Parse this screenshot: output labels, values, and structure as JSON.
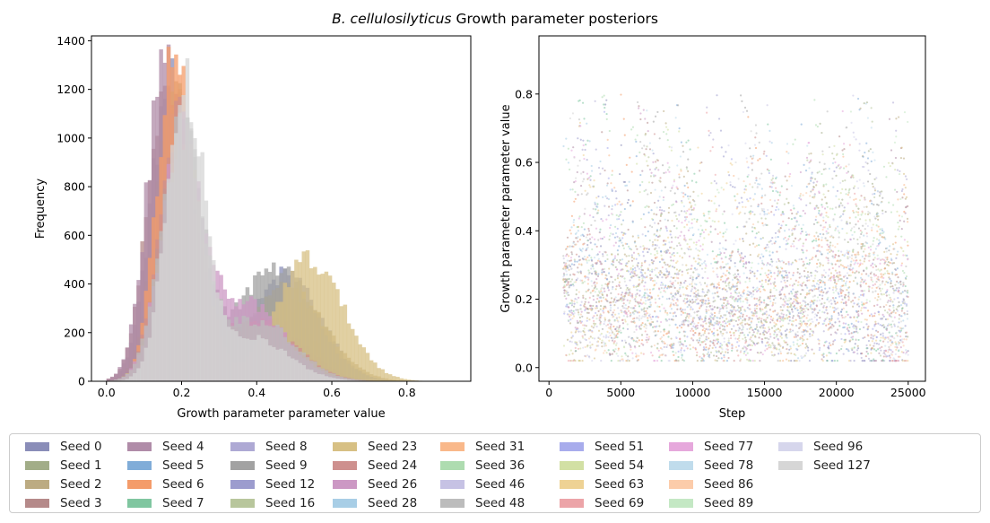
{
  "suptitle_italic": "B. cellulosilyticus",
  "suptitle_rest": "Growth parameter posteriors",
  "chart_data": [
    {
      "type": "histogram",
      "xlabel": "Growth parameter parameter value",
      "ylabel": "Frequency",
      "xlim": [
        -0.04,
        0.97
      ],
      "ylim": [
        0,
        1420
      ],
      "xticks": [
        "0.0",
        "0.2",
        "0.4",
        "0.6",
        "0.8"
      ],
      "yticks": [
        "0",
        "200",
        "400",
        "600",
        "800",
        "1000",
        "1200",
        "1400"
      ],
      "grid": false,
      "series": [
        {
          "name": "Seed 0",
          "mode1": [
            0.17,
            0.052,
            1220
          ],
          "mode2": [
            0.48,
            0.09,
            440
          ]
        },
        {
          "name": "Seed 1",
          "mode1": [
            0.18,
            0.05,
            1180
          ],
          "mode2": [
            0.45,
            0.09,
            330
          ]
        },
        {
          "name": "Seed 2",
          "mode1": [
            0.18,
            0.05,
            1150
          ],
          "mode2": [
            0.48,
            0.1,
            380
          ]
        },
        {
          "name": "Seed 3",
          "mode1": [
            0.16,
            0.05,
            1250
          ],
          "mode2": [
            0.42,
            0.1,
            260
          ]
        },
        {
          "name": "Seed 4",
          "mode1": [
            0.155,
            0.048,
            1280
          ],
          "mode2": [
            0.4,
            0.1,
            220
          ]
        },
        {
          "name": "Seed 6",
          "mode1": [
            0.18,
            0.045,
            1350
          ],
          "mode2": [
            0.4,
            0.1,
            160
          ]
        },
        {
          "name": "Seed 9",
          "mode1": [
            0.2,
            0.055,
            1000
          ],
          "mode2": [
            0.45,
            0.1,
            470
          ]
        },
        {
          "name": "Seed 23",
          "mode1": [
            0.2,
            0.055,
            1000
          ],
          "mode2": [
            0.54,
            0.09,
            500
          ]
        },
        {
          "name": "Seed 24",
          "mode1": [
            0.19,
            0.05,
            1050
          ],
          "mode2": [
            0.4,
            0.1,
            250
          ]
        },
        {
          "name": "Seed 26",
          "mode1": [
            0.2,
            0.055,
            950
          ],
          "mode2": [
            0.37,
            0.1,
            320
          ]
        },
        {
          "name": "Seed 48",
          "mode1": [
            0.2,
            0.055,
            1020
          ],
          "mode2": [
            0.4,
            0.1,
            250
          ]
        },
        {
          "name": "Seed 127",
          "mode1": [
            0.21,
            0.05,
            1170
          ],
          "mode2": [
            0.38,
            0.1,
            180
          ]
        }
      ]
    },
    {
      "type": "scatter",
      "xlabel": "Step",
      "ylabel": "Growth parameter parameter value",
      "xlim": [
        -700,
        26200
      ],
      "ylim": [
        -0.04,
        0.97
      ],
      "xticks": [
        "0",
        "5000",
        "10000",
        "15000",
        "20000",
        "25000"
      ],
      "yticks": [
        "0.0",
        "0.2",
        "0.4",
        "0.6",
        "0.8"
      ],
      "x_range": [
        1000,
        25000
      ],
      "grid": false
    }
  ],
  "legend": [
    {
      "label": "Seed 0",
      "color": "#8a8db8"
    },
    {
      "label": "Seed 1",
      "color": "#a2ad88"
    },
    {
      "label": "Seed 2",
      "color": "#bcab82"
    },
    {
      "label": "Seed 3",
      "color": "#b58a8a"
    },
    {
      "label": "Seed 4",
      "color": "#b08ca8"
    },
    {
      "label": "Seed 5",
      "color": "#80acd8"
    },
    {
      "label": "Seed 6",
      "color": "#f49c6a"
    },
    {
      "label": "Seed 7",
      "color": "#80c6a0"
    },
    {
      "label": "Seed 8",
      "color": "#aea9d4"
    },
    {
      "label": "Seed 9",
      "color": "#a2a2a2"
    },
    {
      "label": "Seed 12",
      "color": "#9c9cce"
    },
    {
      "label": "Seed 16",
      "color": "#b8c69c"
    },
    {
      "label": "Seed 23",
      "color": "#d7c084"
    },
    {
      "label": "Seed 24",
      "color": "#ce908e"
    },
    {
      "label": "Seed 26",
      "color": "#cc98c4"
    },
    {
      "label": "Seed 28",
      "color": "#a8cee6"
    },
    {
      "label": "Seed 31",
      "color": "#f9b88a"
    },
    {
      "label": "Seed 36",
      "color": "#aedcb0"
    },
    {
      "label": "Seed 46",
      "color": "#c6c2e4"
    },
    {
      "label": "Seed 48",
      "color": "#bcbcbc"
    },
    {
      "label": "Seed 51",
      "color": "#a8acec"
    },
    {
      "label": "Seed 54",
      "color": "#d2e0a4"
    },
    {
      "label": "Seed 63",
      "color": "#eed294"
    },
    {
      "label": "Seed 69",
      "color": "#eca4a8"
    },
    {
      "label": "Seed 77",
      "color": "#e6a8dc"
    },
    {
      "label": "Seed 78",
      "color": "#c0dcec"
    },
    {
      "label": "Seed 86",
      "color": "#fcccaa"
    },
    {
      "label": "Seed 89",
      "color": "#c4e8c4"
    },
    {
      "label": "Seed 96",
      "color": "#d6d6ec"
    },
    {
      "label": "Seed 127",
      "color": "#d6d6d6"
    }
  ]
}
